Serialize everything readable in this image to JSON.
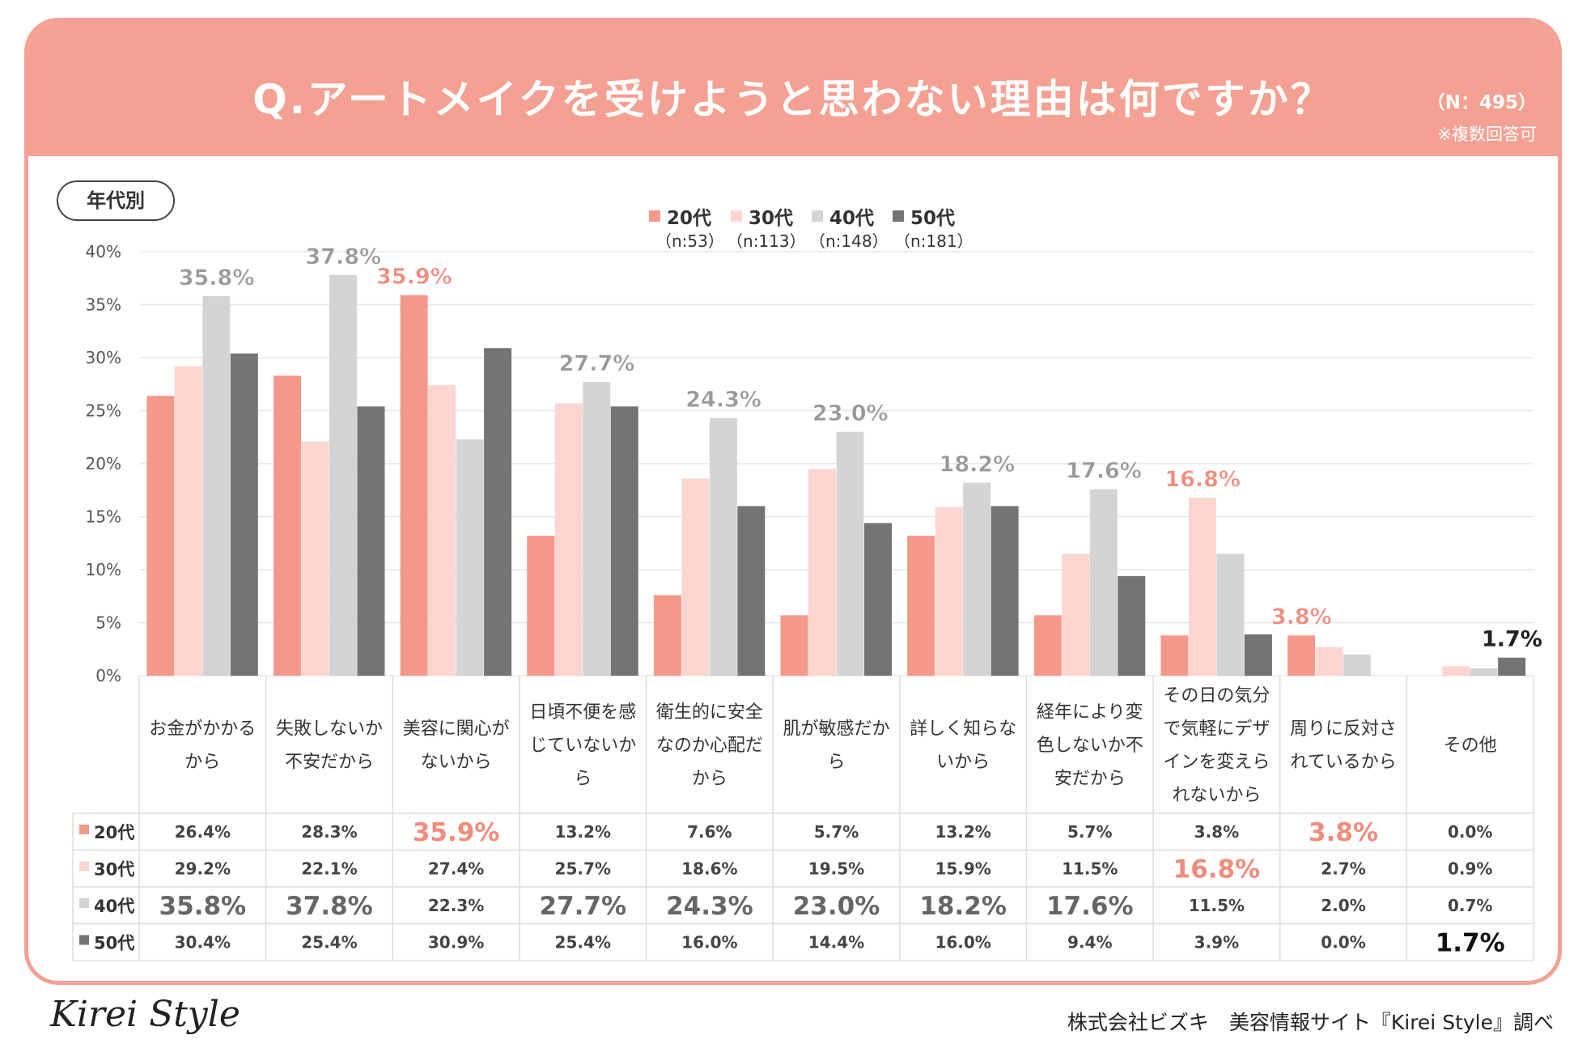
{
  "title": "Q.アートメイクを受けようと思わない理由は何ですか？",
  "sample_size": "（N：495）",
  "note": "※複数回答可",
  "segment_label": "年代別",
  "footer": {
    "logo": "Kirei Style",
    "credit": "株式会社ビズキ　美容情報サイト『Kirei Style』調べ"
  },
  "colors": {
    "20s": "#f4998a",
    "30s": "#fbd6d1",
    "40s": "#d4d4d4",
    "50s": "#747474",
    "highlight": "#f08c7c",
    "peak_gray": "#999999",
    "grid": "#e6e6e6",
    "text": "#333333"
  },
  "chart_data": {
    "type": "bar",
    "segment": "年代別",
    "ylim": [
      0,
      40
    ],
    "yticks": [
      0,
      5,
      10,
      15,
      20,
      25,
      30,
      35,
      40
    ],
    "ytick_labels": [
      "0%",
      "5%",
      "10%",
      "15%",
      "20%",
      "25%",
      "30%",
      "35%",
      "40%"
    ],
    "categories": [
      [
        "お金がかかる",
        "から"
      ],
      [
        "失敗しないか",
        "不安だから"
      ],
      [
        "美容に関心が",
        "ないから"
      ],
      [
        "日頃不便を感",
        "じていないか",
        "ら"
      ],
      [
        "衛生的に安全",
        "なのか心配だ",
        "から"
      ],
      [
        "肌が敏感だか",
        "ら"
      ],
      [
        "詳しく知らな",
        "いから"
      ],
      [
        "経年により変",
        "色しないか不",
        "安だから"
      ],
      [
        "その日の気分",
        "で気軽にデザ",
        "インを変えら",
        "れないから"
      ],
      [
        "周りに反対さ",
        "れているから"
      ],
      [
        "その他"
      ]
    ],
    "series": [
      {
        "name": "20代",
        "n": "（n:53）",
        "color": "#f4998a",
        "values": [
          26.4,
          28.3,
          35.9,
          13.2,
          7.6,
          5.7,
          13.2,
          5.7,
          3.8,
          3.8,
          0.0
        ],
        "labels": [
          "26.4%",
          "28.3%",
          "35.9%",
          "13.2%",
          "7.6%",
          "5.7%",
          "13.2%",
          "5.7%",
          "3.8%",
          "3.8%",
          "0.0%"
        ]
      },
      {
        "name": "30代",
        "n": "（n:113）",
        "color": "#fbd6d1",
        "values": [
          29.2,
          22.1,
          27.4,
          25.7,
          18.6,
          19.5,
          15.9,
          11.5,
          16.8,
          2.7,
          0.9
        ],
        "labels": [
          "29.2%",
          "22.1%",
          "27.4%",
          "25.7%",
          "18.6%",
          "19.5%",
          "15.9%",
          "11.5%",
          "16.8%",
          "2.7%",
          "0.9%"
        ]
      },
      {
        "name": "40代",
        "n": "（n:148）",
        "color": "#d4d4d4",
        "values": [
          35.8,
          37.8,
          22.3,
          27.7,
          24.3,
          23.0,
          18.2,
          17.6,
          11.5,
          2.0,
          0.7
        ],
        "labels": [
          "35.8%",
          "37.8%",
          "22.3%",
          "27.7%",
          "24.3%",
          "23.0%",
          "18.2%",
          "17.6%",
          "11.5%",
          "2.0%",
          "0.7%"
        ]
      },
      {
        "name": "50代",
        "n": "（n:181）",
        "color": "#747474",
        "values": [
          30.4,
          25.4,
          30.9,
          25.4,
          16.0,
          14.4,
          16.0,
          9.4,
          3.9,
          0.0,
          1.7
        ],
        "labels": [
          "30.4%",
          "25.4%",
          "30.9%",
          "25.4%",
          "16.0%",
          "14.4%",
          "16.0%",
          "9.4%",
          "3.9%",
          "0.0%",
          "1.7%"
        ]
      }
    ],
    "peaks": [
      {
        "category": 0,
        "series": 2,
        "label": "35.8%",
        "style": "gray"
      },
      {
        "category": 1,
        "series": 2,
        "label": "37.8%",
        "style": "gray"
      },
      {
        "category": 2,
        "series": 0,
        "label": "35.9%",
        "style": "salmon"
      },
      {
        "category": 3,
        "series": 2,
        "label": "27.7%",
        "style": "gray"
      },
      {
        "category": 4,
        "series": 2,
        "label": "24.3%",
        "style": "gray"
      },
      {
        "category": 5,
        "series": 2,
        "label": "23.0%",
        "style": "gray"
      },
      {
        "category": 6,
        "series": 2,
        "label": "18.2%",
        "style": "gray"
      },
      {
        "category": 7,
        "series": 2,
        "label": "17.6%",
        "style": "gray"
      },
      {
        "category": 8,
        "series": 1,
        "label": "16.8%",
        "style": "salmon"
      },
      {
        "category": 9,
        "series": 0,
        "label": "3.8%",
        "style": "salmon"
      },
      {
        "category": 10,
        "series": 3,
        "label": "1.7%",
        "style": "dark"
      }
    ]
  }
}
